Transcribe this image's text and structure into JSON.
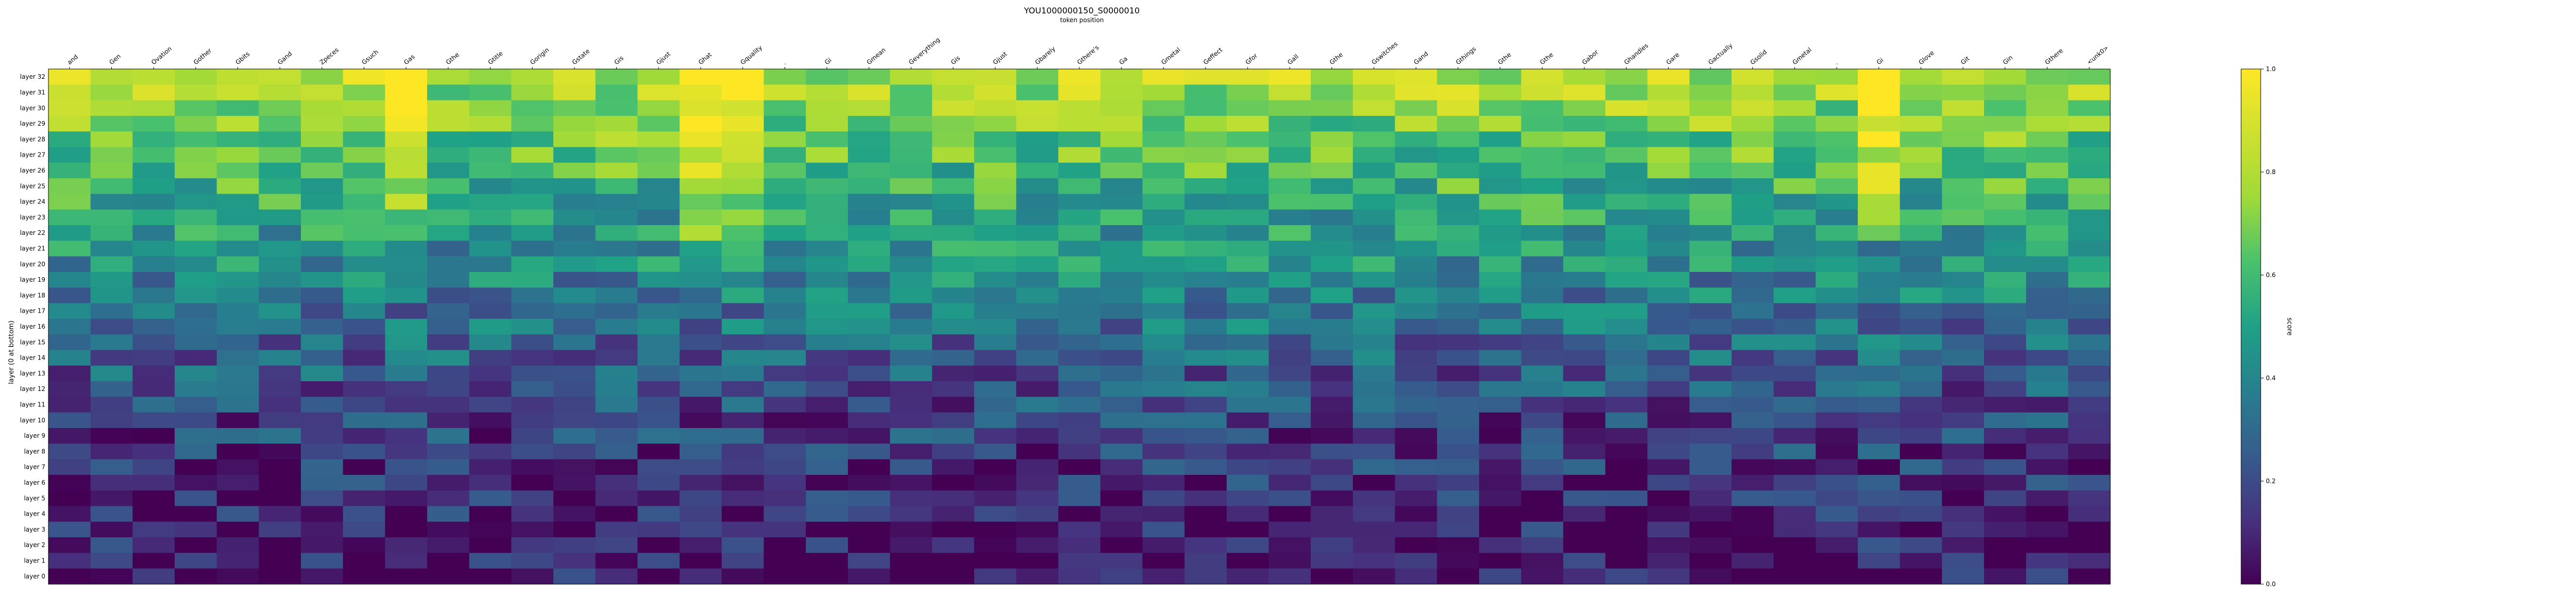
{
  "chart_data": {
    "type": "heatmap",
    "title": "YOU1000000150_S0000010",
    "subtitle": "token position",
    "xlabel": "",
    "ylabel": "layer (0 at bottom)",
    "colorbar_label": "score",
    "colormap": "viridis",
    "value_range": [
      0.0,
      1.0
    ],
    "colorbar_ticks": [
      "0.0",
      "0.2",
      "0.4",
      "0.6",
      "0.8",
      "1.0"
    ],
    "x_tick_labels": [
      "and",
      "Gen",
      "Ovation",
      "Gother",
      "Gbits",
      "Gand",
      "Zpeces",
      "Gsuch",
      "Gas",
      "Gthe",
      "Gtitle",
      "Gorigin",
      "Gstate",
      "Gis",
      "Gjust",
      "Ghat",
      "Gquality",
      ".",
      "Gi",
      "Gmean",
      "Geverything",
      "Gis",
      "Gjust",
      "Gbarely",
      "Gthere's",
      "Ga",
      "Gmetal",
      "Geffect",
      "Gfor",
      "Gall",
      "Gthe",
      "Gswitches",
      "Gand",
      "Gthings",
      "Gthe",
      "Gthe",
      "Gabor",
      "Ghandles",
      "Gare",
      "Gactually",
      "Gsolid",
      "Gmetal",
      ".",
      "Gi",
      "Glove",
      "Git",
      "Gin",
      "Gthere",
      "<unk0>"
    ],
    "y_tick_labels": [
      "layer 32",
      "layer 31",
      "layer 30",
      "layer 29",
      "layer 28",
      "layer 27",
      "layer 26",
      "layer 25",
      "layer 24",
      "layer 23",
      "layer 22",
      "layer 21",
      "layer 20",
      "layer 19",
      "layer 18",
      "layer 17",
      "layer 16",
      "layer 15",
      "layer 14",
      "layer 13",
      "layer 12",
      "layer 11",
      "layer 10",
      "layer 9",
      "layer 8",
      "layer 7",
      "layer 6",
      "layer 5",
      "layer 4",
      "layer 3",
      "layer 2",
      "layer 1",
      "layer 0"
    ],
    "grid": false,
    "cell_annotations": "token strings per cell (too small to read)"
  }
}
